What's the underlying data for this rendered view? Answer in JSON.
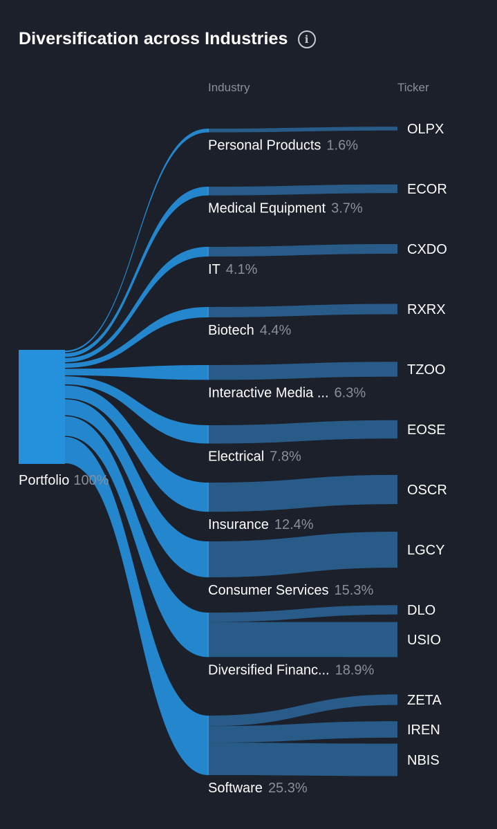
{
  "header": {
    "title": "Diversification across Industries",
    "info_icon": "info-icon"
  },
  "columns": {
    "industry": "Industry",
    "ticker": "Ticker"
  },
  "colors": {
    "background": "#1b202b",
    "accent": "#2590dc",
    "link_dark": "#2a5f8e",
    "muted_text": "#8b8f97"
  },
  "chart_data": {
    "type": "sankey",
    "source": {
      "name": "Portfolio",
      "pct_label": "100%"
    },
    "industries": [
      {
        "name": "Personal Products",
        "pct": 1.6,
        "pct_label": "1.6%",
        "tickers": [
          {
            "name": "OLPX",
            "pct": 1.6
          }
        ]
      },
      {
        "name": "Medical Equipment",
        "pct": 3.7,
        "pct_label": "3.7%",
        "tickers": [
          {
            "name": "ECOR",
            "pct": 3.7
          }
        ]
      },
      {
        "name": "IT",
        "pct": 4.1,
        "pct_label": "4.1%",
        "tickers": [
          {
            "name": "CXDO",
            "pct": 4.1
          }
        ]
      },
      {
        "name": "Biotech",
        "pct": 4.4,
        "pct_label": "4.4%",
        "tickers": [
          {
            "name": "RXRX",
            "pct": 4.4
          }
        ]
      },
      {
        "name": "Interactive Media ...",
        "pct": 6.3,
        "pct_label": "6.3%",
        "tickers": [
          {
            "name": "TZOO",
            "pct": 6.3
          }
        ]
      },
      {
        "name": "Electrical",
        "pct": 7.8,
        "pct_label": "7.8%",
        "tickers": [
          {
            "name": "EOSE",
            "pct": 7.8
          }
        ]
      },
      {
        "name": "Insurance",
        "pct": 12.4,
        "pct_label": "12.4%",
        "tickers": [
          {
            "name": "OSCR",
            "pct": 12.4
          }
        ]
      },
      {
        "name": "Consumer Services",
        "pct": 15.3,
        "pct_label": "15.3%",
        "tickers": [
          {
            "name": "LGCY",
            "pct": 15.3
          }
        ]
      },
      {
        "name": "Diversified Financ...",
        "pct": 18.9,
        "pct_label": "18.9%",
        "tickers": [
          {
            "name": "DLO",
            "pct": 4.0
          },
          {
            "name": "USIO",
            "pct": 14.9
          }
        ]
      },
      {
        "name": "Software",
        "pct": 25.3,
        "pct_label": "25.3%",
        "tickers": [
          {
            "name": "ZETA",
            "pct": 4.5
          },
          {
            "name": "IREN",
            "pct": 7.0
          },
          {
            "name": "NBIS",
            "pct": 13.8
          }
        ]
      }
    ]
  }
}
